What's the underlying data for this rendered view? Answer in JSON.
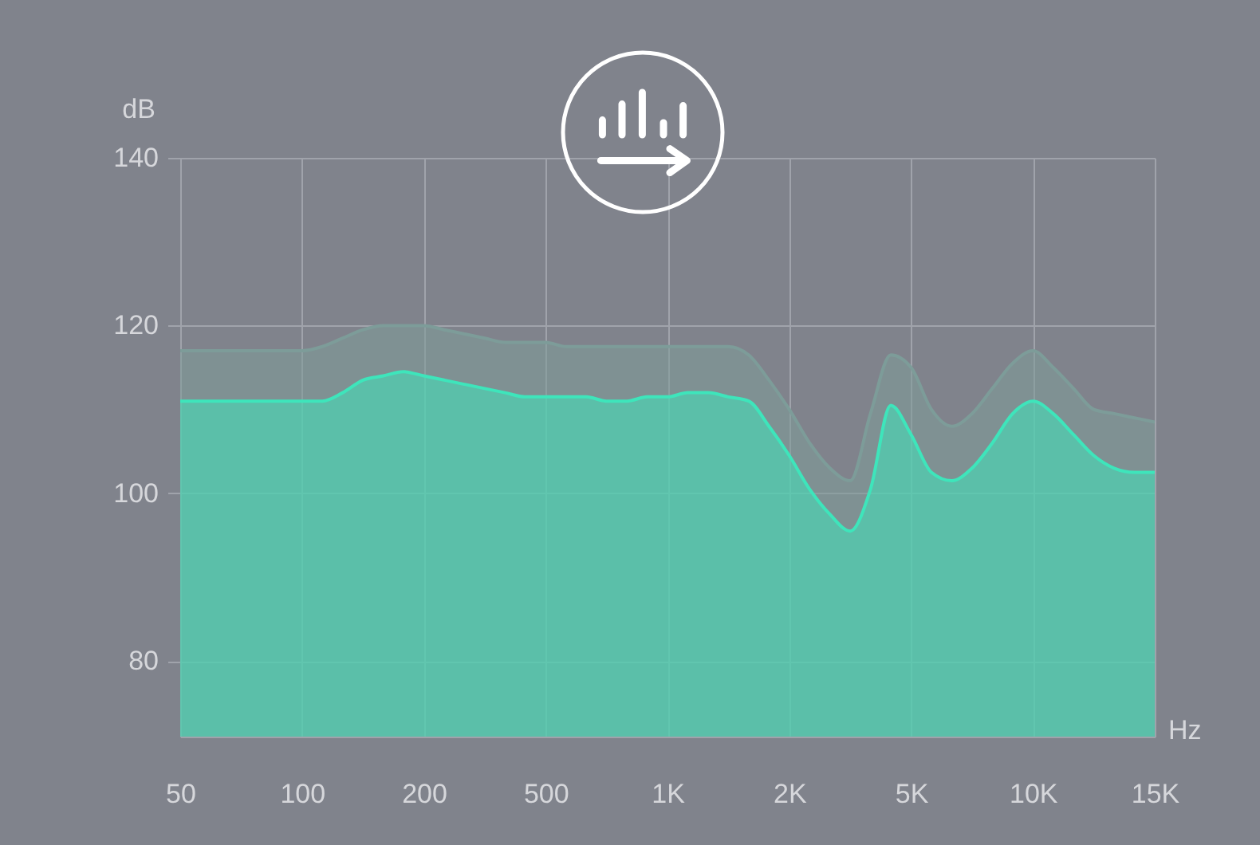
{
  "chart_data": {
    "type": "area",
    "xlabel": "Hz",
    "ylabel": "dB",
    "categories": [
      "50",
      null,
      null,
      null,
      null,
      null,
      "100",
      null,
      null,
      null,
      null,
      null,
      "200",
      null,
      null,
      null,
      null,
      null,
      "500",
      null,
      null,
      null,
      null,
      null,
      "1K",
      null,
      null,
      null,
      null,
      null,
      "2K",
      null,
      null,
      null,
      null,
      null,
      "5K",
      null,
      null,
      null,
      null,
      null,
      "10K",
      null,
      null,
      null,
      null,
      null,
      "15K"
    ],
    "series": [
      {
        "color": "#7d9c99",
        "values": [
          117,
          117,
          117,
          117,
          117,
          117,
          117,
          117.5,
          118.5,
          119.5,
          120,
          120,
          120,
          119.5,
          119,
          118.5,
          118,
          118,
          118,
          117.5,
          117.5,
          117.5,
          117.5,
          117.5,
          117.5,
          117.5,
          117.5,
          117.5,
          116.5,
          113.5,
          110,
          106,
          103,
          101.5,
          109.5,
          116.5,
          115,
          110,
          108,
          109.5,
          112.5,
          115.5,
          117,
          115,
          112.5,
          110,
          109.5,
          109,
          108.5
        ]
      },
      {
        "color": "#3ee5bb",
        "values": [
          111,
          111,
          111,
          111,
          111,
          111,
          111,
          111,
          112,
          113.5,
          114,
          114.5,
          114,
          113.5,
          113,
          112.5,
          112,
          111.5,
          111.5,
          111.5,
          111.5,
          111,
          111,
          111.5,
          111.5,
          112,
          112,
          111.5,
          111,
          108,
          104.5,
          100.5,
          97.5,
          95.5,
          100.5,
          110.5,
          107,
          102.5,
          101.5,
          103,
          106,
          109.5,
          111,
          109.5,
          107,
          104.5,
          103,
          102.5,
          102.5
        ]
      }
    ],
    "ylim": [
      71,
      140
    ],
    "yticks": [
      80,
      100,
      120,
      140
    ],
    "grid": true
  }
}
